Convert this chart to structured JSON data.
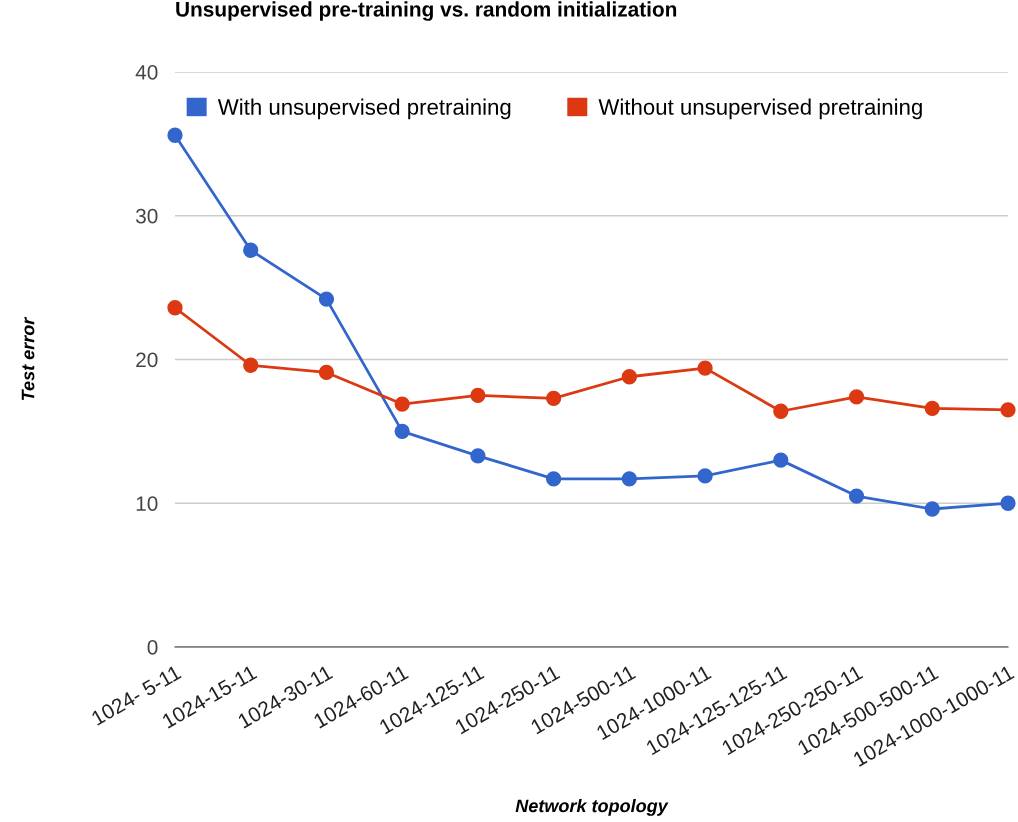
{
  "chart_data": {
    "type": "line",
    "title": "Unsupervised pre-training vs. random initialization",
    "xlabel": "Network topology",
    "ylabel": "Test error",
    "categories": [
      "1024- 5-11",
      "1024-15-11",
      "1024-30-11",
      "1024-60-11",
      "1024-125-11",
      "1024-250-11",
      "1024-500-11",
      "1024-1000-11",
      "1024-125-125-11",
      "1024-250-250-11",
      "1024-500-500-11",
      "1024-1000-1000-11"
    ],
    "series": [
      {
        "name": "With unsupervised pretraining",
        "color": "#3366cc",
        "values": [
          35.6,
          27.6,
          24.2,
          15.0,
          13.3,
          11.7,
          11.7,
          11.9,
          13.0,
          10.5,
          9.6,
          10.0
        ]
      },
      {
        "name": "Without unsupervised pretraining",
        "color": "#dc3912",
        "values": [
          23.6,
          19.6,
          19.1,
          16.9,
          17.5,
          17.3,
          18.8,
          19.4,
          16.4,
          17.4,
          16.6,
          16.5
        ]
      }
    ],
    "ylim": [
      0,
      40
    ],
    "yticks": [
      0,
      10,
      20,
      30,
      40
    ],
    "grid": "y",
    "legend": "top",
    "marker": "circle",
    "line_style": "solid"
  }
}
